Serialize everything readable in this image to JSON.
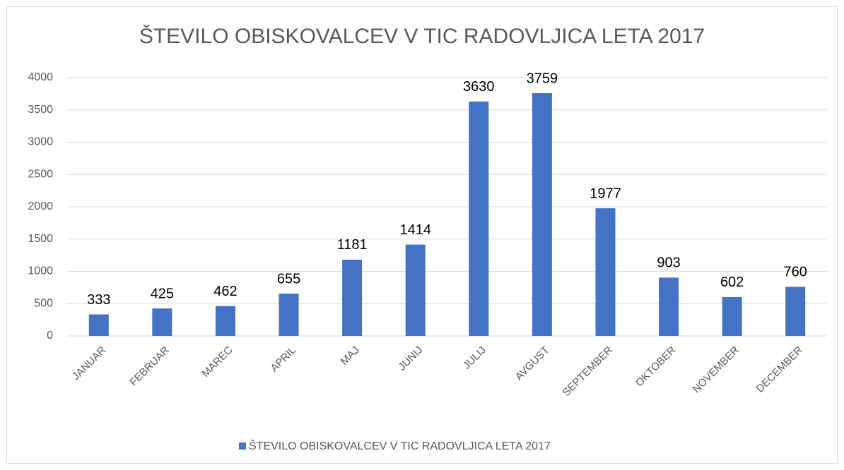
{
  "chart_data": {
    "type": "bar",
    "title": "ŠTEVILO OBISKOVALCEV V TIC RADOVLJICA LETA 2017",
    "categories": [
      "JANUAR",
      "FEBRUAR",
      "MAREC",
      "APRIL",
      "MAJ",
      "JUNIJ",
      "JULIJ",
      "AVGUST",
      "SEPTEMBER",
      "OKTOBER",
      "NOVEMBER",
      "DECEMBER"
    ],
    "series": [
      {
        "name": "ŠTEVILO OBISKOVALCEV V TIC RADOVLJICA LETA 2017",
        "color": "#4472c4",
        "values": [
          333,
          425,
          462,
          655,
          1181,
          1414,
          3630,
          3759,
          1977,
          903,
          602,
          760
        ]
      }
    ],
    "ylim": [
      0,
      4000
    ],
    "yticks": [
      0,
      500,
      1000,
      1500,
      2000,
      2500,
      3000,
      3500,
      4000
    ],
    "grid": true,
    "legend": "bottom"
  }
}
